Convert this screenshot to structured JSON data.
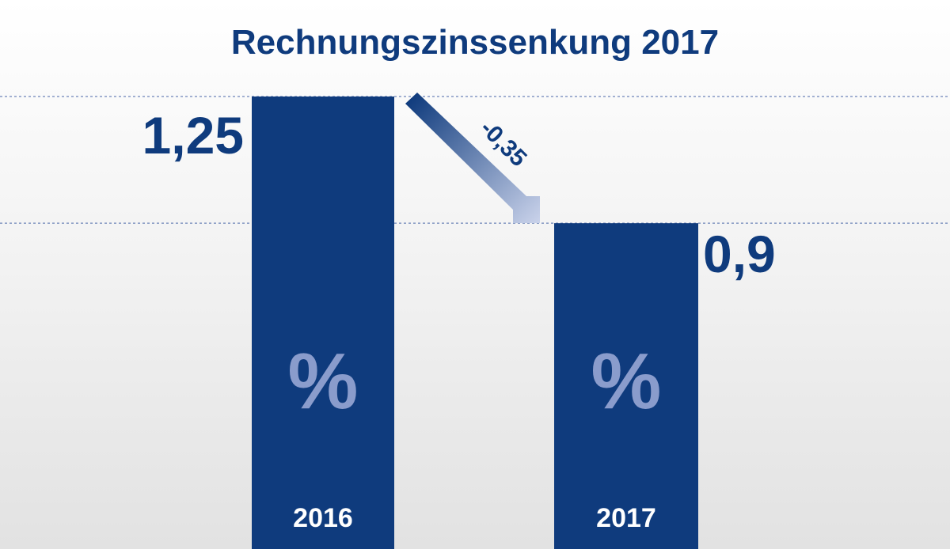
{
  "chart_data": {
    "type": "bar",
    "title": "Rechnungszinssenkung 2017",
    "categories": [
      "2016",
      "2017"
    ],
    "values": [
      1.25,
      0.9
    ],
    "value_labels": [
      "1,25",
      "0,9"
    ],
    "unit_symbol": "%",
    "change_label": "-0,35",
    "xlabel": "",
    "ylabel": "",
    "grid": false,
    "colors": {
      "bar": "#0f3b7d",
      "text": "#0f3b7d",
      "category_label": "#ffffff",
      "unit_symbol": "#8a9ccc",
      "reference_line": "#6d84b8",
      "arrow_start": "#0f3b7d",
      "arrow_end": "#c9d2ea"
    }
  }
}
